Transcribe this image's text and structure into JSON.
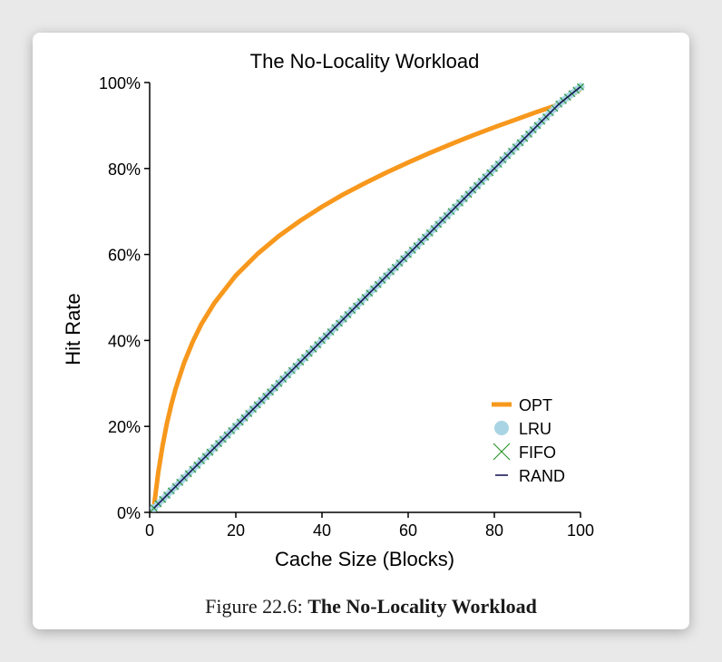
{
  "chart_data": {
    "type": "line",
    "title": "The No-Locality Workload",
    "xlabel": "Cache Size (Blocks)",
    "ylabel": "Hit Rate",
    "xlim": [
      0,
      100
    ],
    "ylim": [
      0,
      100
    ],
    "x_ticks": [
      "0",
      "20",
      "40",
      "60",
      "80",
      "100"
    ],
    "y_ticks": [
      "0%",
      "20%",
      "40%",
      "60%",
      "80%",
      "100%"
    ],
    "grid": false,
    "legend_position": "bottom-right",
    "series": [
      {
        "name": "OPT",
        "color": "#f7981d",
        "marker": "thick-line",
        "x": [
          1,
          2,
          3,
          4,
          5,
          6,
          8,
          10,
          12,
          15,
          20,
          25,
          30,
          35,
          40,
          45,
          50,
          55,
          60,
          65,
          70,
          75,
          80,
          85,
          90,
          95,
          100
        ],
        "values": [
          1.5,
          9.3,
          15.6,
          20.7,
          25.0,
          28.7,
          34.8,
          39.7,
          43.8,
          48.7,
          55.1,
          60.1,
          64.3,
          67.9,
          71.1,
          74.0,
          76.6,
          79.1,
          81.4,
          83.6,
          85.7,
          87.7,
          89.6,
          91.4,
          93.2,
          94.9,
          98.5
        ]
      },
      {
        "name": "LRU",
        "color": "#a9d4e4",
        "marker": "circle",
        "x": [
          1,
          5,
          10,
          15,
          20,
          25,
          30,
          35,
          40,
          45,
          50,
          55,
          60,
          65,
          70,
          75,
          80,
          85,
          90,
          95,
          100
        ],
        "values": [
          1,
          5,
          10,
          15,
          20,
          25,
          30,
          35,
          40,
          45,
          50,
          55,
          60,
          65,
          70,
          75,
          80,
          85,
          90,
          95,
          99
        ]
      },
      {
        "name": "FIFO",
        "color": "#1a8f1a",
        "marker": "x",
        "x": [
          1,
          5,
          10,
          15,
          20,
          25,
          30,
          35,
          40,
          45,
          50,
          55,
          60,
          65,
          70,
          75,
          80,
          85,
          90,
          95,
          100
        ],
        "values": [
          1,
          5,
          10,
          15,
          20,
          25,
          30,
          35,
          40,
          45,
          50,
          55,
          60,
          65,
          70,
          75,
          80,
          85,
          90,
          95,
          99
        ]
      },
      {
        "name": "RAND",
        "color": "#1a1a5a",
        "marker": "dash",
        "x": [
          1,
          5,
          10,
          15,
          20,
          25,
          30,
          35,
          40,
          45,
          50,
          55,
          60,
          65,
          70,
          75,
          80,
          85,
          90,
          95,
          100
        ],
        "values": [
          1,
          5,
          10,
          15,
          20,
          25,
          30,
          35,
          40,
          45,
          50,
          55,
          60,
          65,
          70,
          75,
          80,
          85,
          90,
          95,
          99
        ]
      }
    ]
  },
  "caption": {
    "prefix": "Figure 22.6:",
    "title": "The No-Locality Workload"
  }
}
